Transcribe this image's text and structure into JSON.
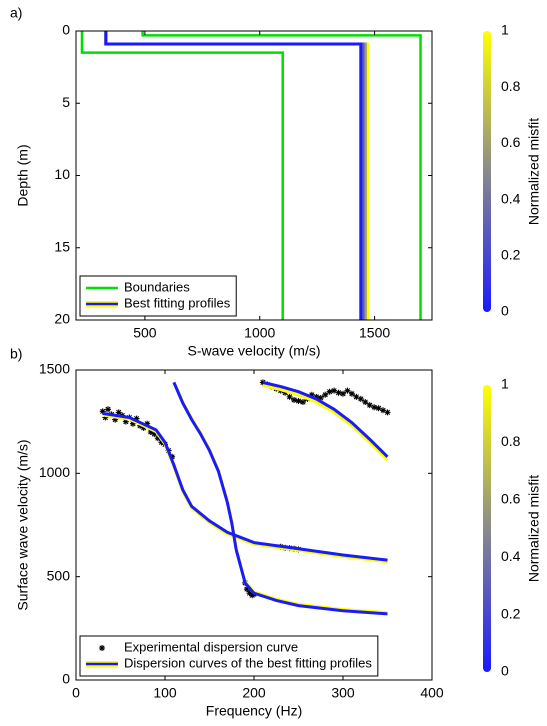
{
  "chart_data": [
    {
      "type": "line",
      "label": "a)",
      "xlabel": "S-wave velocity (m/s)",
      "ylabel": "Depth (m)",
      "xlim": [
        200,
        1750
      ],
      "xticks": [
        500,
        1000,
        1500
      ],
      "ylim": [
        0,
        20
      ],
      "yticks": [
        0,
        5,
        10,
        15,
        20
      ],
      "y_inverted": true,
      "legend": "lower left",
      "colorbar": {
        "label": "Normalized misfit",
        "lim": [
          0,
          1
        ],
        "ticks": [
          0,
          0.2,
          0.4,
          0.6,
          0.8,
          1
        ],
        "colormap": [
          "#1a1aff",
          "#8a8a8a",
          "#ffff00"
        ]
      },
      "series": [
        {
          "name": "Boundaries",
          "color": "#00e000",
          "profiles": [
            {
              "x": [
                226,
                226,
                1100,
                1100
              ],
              "y": [
                0,
                1.5,
                1.5,
                20
              ]
            },
            {
              "x": [
                490,
                490,
                1700,
                1700
              ],
              "y": [
                0,
                0.3,
                0.3,
                20
              ]
            }
          ]
        },
        {
          "name": "Best fitting profiles",
          "profiles": [
            {
              "misfit": 1,
              "x": [
                330,
                330,
                1470,
                1470
              ],
              "y": [
                0,
                0.9,
                0.9,
                20
              ]
            },
            {
              "misfit": 0.6,
              "x": [
                330,
                330,
                1460,
                1460
              ],
              "y": [
                0,
                0.9,
                0.9,
                20
              ]
            },
            {
              "misfit": 0.3,
              "x": [
                330,
                330,
                1450,
                1450
              ],
              "y": [
                0,
                0.9,
                0.9,
                20
              ]
            },
            {
              "misfit": 0,
              "x": [
                330,
                330,
                1440,
                1440
              ],
              "y": [
                0,
                0.9,
                0.9,
                20
              ]
            }
          ]
        }
      ]
    },
    {
      "type": "line",
      "label": "b)",
      "xlabel": "Frequency (Hz)",
      "ylabel": "Surface wave velocity (m/s)",
      "xlim": [
        0,
        400
      ],
      "xticks": [
        0,
        100,
        200,
        300,
        400
      ],
      "ylim": [
        0,
        1500
      ],
      "yticks": [
        0,
        500,
        1000,
        1500
      ],
      "legend": "lower left",
      "colorbar": {
        "label": "Normalized misfit",
        "lim": [
          0,
          1
        ],
        "ticks": [
          0,
          0.2,
          0.4,
          0.6,
          0.8,
          1
        ],
        "colormap": [
          "#1a1aff",
          "#8a8a8a",
          "#ffff00"
        ]
      },
      "series": [
        {
          "name": "Experimental dispersion curve",
          "marker": "star",
          "color": "#000000",
          "x": [
            30,
            33,
            36,
            40,
            44,
            48,
            52,
            56,
            60,
            64,
            68,
            72,
            76,
            80,
            84,
            88,
            92,
            96,
            100,
            104,
            108,
            190,
            192,
            195,
            198,
            200,
            230,
            235,
            240,
            245,
            250,
            210,
            215,
            220,
            225,
            230,
            235,
            240,
            245,
            250,
            255,
            260,
            265,
            270,
            275,
            280,
            285,
            290,
            295,
            300,
            305,
            310,
            315,
            320,
            325,
            330,
            335,
            340,
            345,
            350
          ],
          "y": [
            1300,
            1270,
            1310,
            1285,
            1260,
            1295,
            1280,
            1250,
            1270,
            1240,
            1265,
            1230,
            1220,
            1240,
            1200,
            1190,
            1170,
            1150,
            1140,
            1110,
            1080,
            470,
            440,
            420,
            410,
            415,
            645,
            640,
            638,
            635,
            632,
            1440,
            1430,
            1420,
            1410,
            1400,
            1390,
            1370,
            1355,
            1350,
            1345,
            1360,
            1380,
            1370,
            1365,
            1380,
            1395,
            1400,
            1390,
            1385,
            1400,
            1385,
            1370,
            1360,
            1345,
            1330,
            1320,
            1315,
            1305,
            1295
          ]
        },
        {
          "name": "Dispersion curves of the best fitting profiles",
          "profiles": [
            {
              "misfit": 1,
              "x": [
                30,
                60,
                90,
                100,
                110,
                120,
                130,
                150,
                170,
                200,
                250,
                300,
                350
              ],
              "y": [
                1282,
                1262,
                1202,
                1142,
                1032,
                912,
                832,
                762,
                707,
                657,
                627,
                597,
                572
              ]
            },
            {
              "misfit": 1,
              "x": [
                110,
                120,
                130,
                140,
                150,
                160,
                170,
                175,
                180,
                190,
                200,
                225,
                250,
                300,
                350
              ],
              "y": [
                1440,
                1345,
                1266,
                1196,
                1116,
                1016,
                866,
                766,
                636,
                476,
                426,
                391,
                366,
                341,
                326
              ]
            },
            {
              "misfit": 1,
              "x": [
                210,
                230,
                250,
                270,
                290,
                310,
                330,
                350
              ],
              "y": [
                1425,
                1405,
                1380,
                1345,
                1295,
                1230,
                1150,
                1065
              ]
            },
            {
              "misfit": 0,
              "x": [
                30,
                60,
                90,
                100,
                110,
                120,
                130,
                150,
                170,
                200,
                250,
                300,
                350
              ],
              "y": [
                1290,
                1270,
                1210,
                1150,
                1040,
                920,
                840,
                770,
                715,
                665,
                635,
                605,
                580
              ]
            },
            {
              "misfit": 0,
              "x": [
                110,
                120,
                130,
                140,
                150,
                160,
                170,
                175,
                180,
                190,
                200,
                225,
                250,
                300,
                350
              ],
              "y": [
                1440,
                1340,
                1260,
                1190,
                1110,
                1010,
                860,
                760,
                630,
                470,
                420,
                385,
                360,
                335,
                320
              ]
            },
            {
              "misfit": 0,
              "x": [
                210,
                230,
                250,
                270,
                290,
                310,
                330,
                350
              ],
              "y": [
                1440,
                1420,
                1395,
                1360,
                1310,
                1245,
                1165,
                1080
              ]
            }
          ]
        }
      ]
    }
  ]
}
